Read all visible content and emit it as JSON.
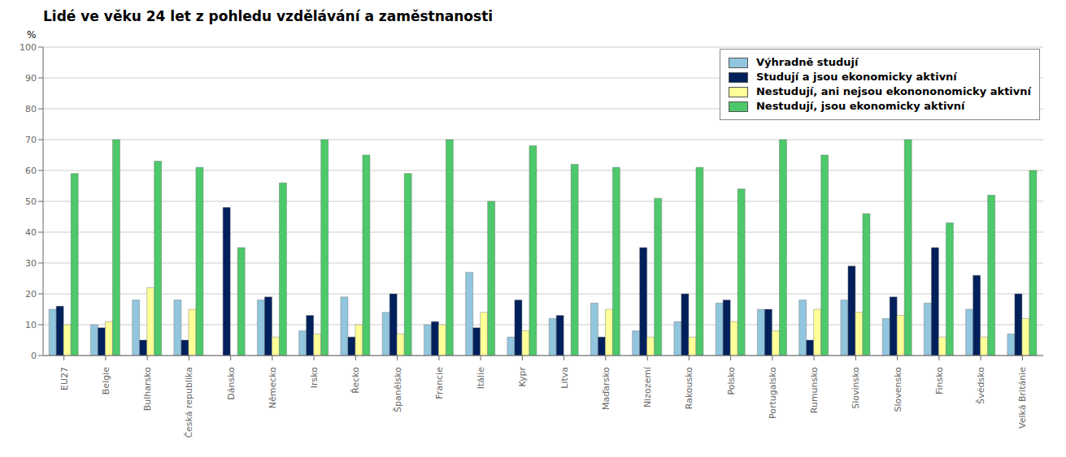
{
  "chart_data": {
    "type": "bar",
    "title": "Lidé ve věku 24 let z pohledu vzdělávání a zaměstnanosti",
    "y_label": "%",
    "categories": [
      "EU27",
      "Belgie",
      "Bulharsko",
      "Česká republika",
      "Dánsko",
      "Německo",
      "Irsko",
      "Řecko",
      "Španělsko",
      "Francie",
      "Itálie",
      "Kypr",
      "Litva",
      "Maďarsko",
      "Nizozemí",
      "Rakousko",
      "Polsko",
      "Portugalsko",
      "Rumunsko",
      "Slovinsko",
      "Slovensko",
      "Finsko",
      "Švédsko",
      "Velká Británie"
    ],
    "series": [
      {
        "name": "Výhradně studují",
        "color": "#92C5DE",
        "values": [
          15,
          10,
          18,
          18,
          0,
          18,
          8,
          19,
          14,
          10,
          27,
          6,
          12,
          17,
          8,
          11,
          17,
          15,
          18,
          18,
          12,
          17,
          15,
          7
        ]
      },
      {
        "name": "Studují a jsou ekonomicky aktivní",
        "color": "#00205B",
        "values": [
          16,
          9,
          5,
          5,
          48,
          19,
          13,
          6,
          20,
          11,
          9,
          18,
          13,
          6,
          35,
          20,
          18,
          15,
          5,
          29,
          19,
          35,
          26,
          20
        ]
      },
      {
        "name": "Nestudují, ani nejsou ekonononomicky aktivní",
        "color": "#FFFF99",
        "values": [
          10,
          11,
          22,
          15,
          0,
          6,
          7,
          10,
          7,
          10,
          14,
          8,
          0,
          15,
          6,
          6,
          11,
          8,
          15,
          14,
          13,
          6,
          6,
          12
        ]
      },
      {
        "name": "Nestudují, jsou ekonomicky aktivní",
        "color": "#4DC86A",
        "values": [
          59,
          70,
          63,
          61,
          35,
          56,
          70,
          65,
          59,
          70,
          50,
          68,
          62,
          61,
          51,
          61,
          54,
          70,
          65,
          46,
          70,
          43,
          52,
          60
        ]
      }
    ],
    "ylim": [
      0,
      100
    ],
    "yticks": [
      0,
      10,
      20,
      30,
      40,
      50,
      60,
      70,
      80,
      90,
      100
    ],
    "grid": true,
    "legend": "upper right"
  }
}
